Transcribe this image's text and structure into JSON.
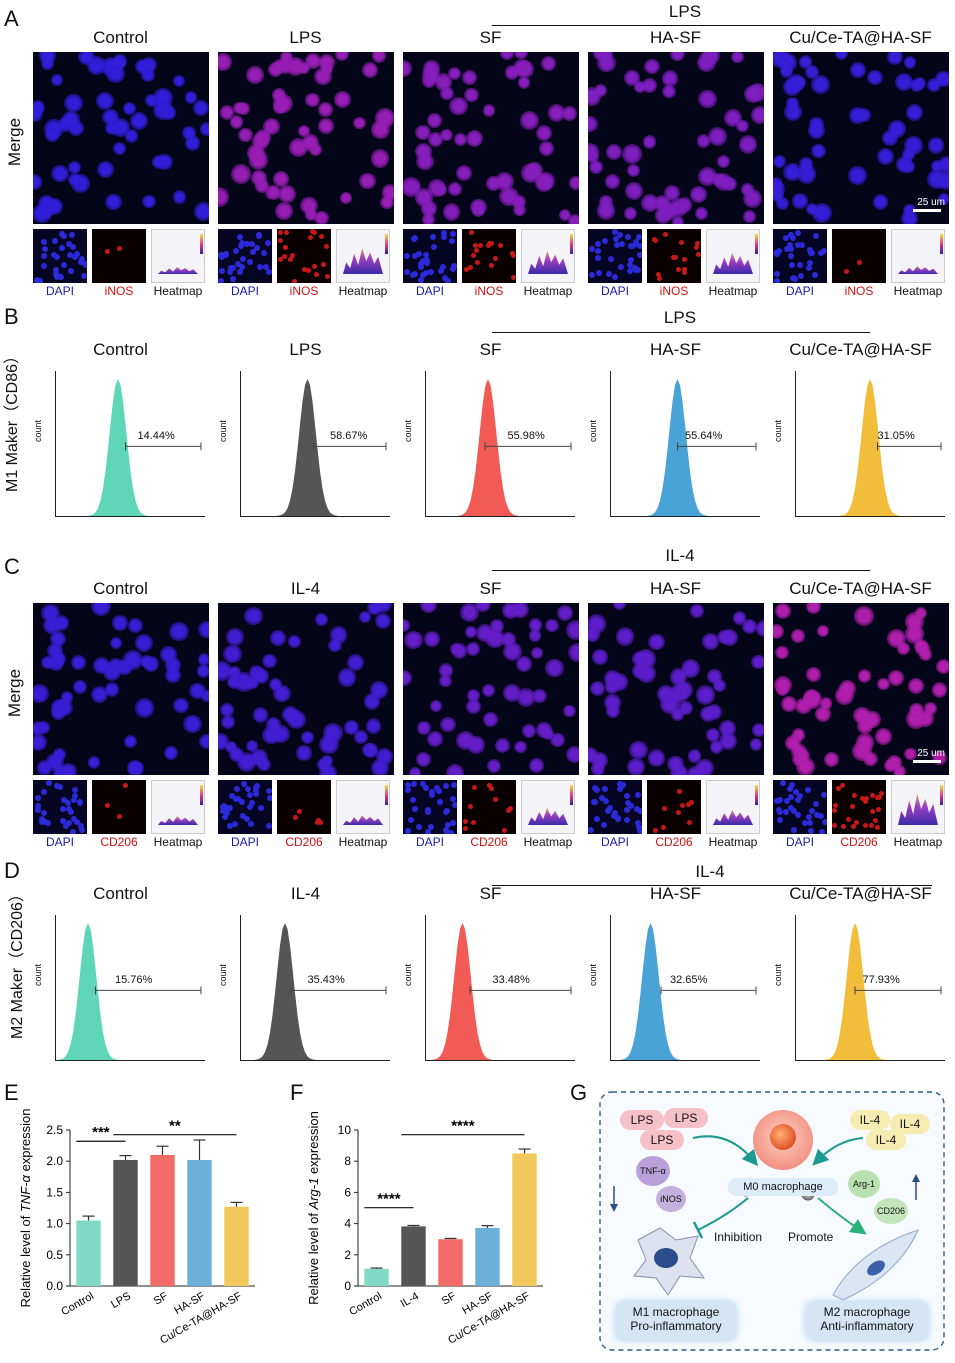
{
  "panel_letters": [
    "A",
    "B",
    "C",
    "D",
    "E",
    "F",
    "G"
  ],
  "panelA": {
    "group_header": "LPS",
    "row_label": "Merge",
    "titles": [
      "Control",
      "LPS",
      "SF",
      "HA-SF",
      "Cu/Ce-TA@HA-SF"
    ],
    "scale_bar": "25 um",
    "thumb_labels": [
      "DAPI",
      "iNOS",
      "Heatmap"
    ]
  },
  "panelB": {
    "group_header": "LPS",
    "row_label": "M1 Maker（CD86）",
    "titles": [
      "Control",
      "LPS",
      "SF",
      "HA-SF",
      "Cu/Ce-TA@HA-SF"
    ],
    "percents": [
      "14.44%",
      "58.67%",
      "55.98%",
      "55.64%",
      "31.05%"
    ],
    "count_label": "count",
    "colors": [
      "#5fd6b8",
      "#555555",
      "#f25a55",
      "#4aa3d6",
      "#f2bd3a"
    ]
  },
  "panelC": {
    "group_header": "IL-4",
    "row_label": "Merge",
    "titles": [
      "Control",
      "IL-4",
      "SF",
      "HA-SF",
      "Cu/Ce-TA@HA-SF"
    ],
    "scale_bar": "25 um",
    "thumb_labels": [
      "DAPI",
      "CD206",
      "Heatmap"
    ]
  },
  "panelD": {
    "group_header": "IL-4",
    "row_label": "M2 Maker（CD206）",
    "titles": [
      "Control",
      "IL-4",
      "SF",
      "HA-SF",
      "Cu/Ce-TA@HA-SF"
    ],
    "percents": [
      "15.76%",
      "35.43%",
      "33.48%",
      "32.65%",
      "77.93%"
    ],
    "count_label": "count",
    "colors": [
      "#5fd6b8",
      "#555555",
      "#f25a55",
      "#4aa3d6",
      "#f2bd3a"
    ]
  },
  "panelG": {
    "lps": [
      "LPS",
      "LPS",
      "LPS"
    ],
    "il4": [
      "IL-4",
      "IL-4",
      "IL-4"
    ],
    "m0": "M0 macrophage",
    "tnf": "TNF-α",
    "inos": "iNOS",
    "arg1": "Arg-1",
    "cd206": "CD206",
    "inhibition": "Inhibition",
    "promote": "Promote",
    "m1_line1": "M1 macrophage",
    "m1_line2": "Pro-inflammatory",
    "m2_line1": "M2 macrophage",
    "m2_line2": "Anti-inflammatory"
  },
  "chart_data": [
    {
      "type": "bar",
      "panel": "E",
      "categories": [
        "Control",
        "LPS",
        "SF",
        "HA-SF",
        "Cu/Ce-TA@HA-SF"
      ],
      "values": [
        1.05,
        2.02,
        2.1,
        2.02,
        1.27
      ],
      "errors": [
        0.07,
        0.07,
        0.14,
        0.32,
        0.07
      ],
      "ylabel_prefix": "Relative level of ",
      "ylabel_gene": "TNF-α",
      "ylabel_suffix": " expression",
      "ylim": [
        0,
        2.5
      ],
      "yticks": [
        "0.0",
        "0.5",
        "1.0",
        "1.5",
        "2.0",
        "2.5"
      ],
      "colors": [
        "#7fd9c4",
        "#555555",
        "#f26b66",
        "#6ab0d9",
        "#f2c75c"
      ],
      "significance": [
        {
          "from": 0,
          "to": 1,
          "label": "***"
        },
        {
          "from": 1,
          "to": 4,
          "label": "**"
        }
      ]
    },
    {
      "type": "bar",
      "panel": "F",
      "categories": [
        "Control",
        "IL-4",
        "SF",
        "HA-SF",
        "Cu/Ce-TA@HA-SF"
      ],
      "values": [
        1.1,
        3.82,
        3.0,
        3.72,
        8.5
      ],
      "errors": [
        0.05,
        0.06,
        0.05,
        0.15,
        0.28
      ],
      "ylabel_prefix": "Relative level of ",
      "ylabel_gene": "Arg-1",
      "ylabel_suffix": " expression",
      "ylim": [
        0,
        10
      ],
      "yticks": [
        "0",
        "2",
        "4",
        "6",
        "8",
        "10"
      ],
      "colors": [
        "#7fd9c4",
        "#555555",
        "#f26b66",
        "#6ab0d9",
        "#f2c75c"
      ],
      "significance": [
        {
          "from": 0,
          "to": 1,
          "label": "****"
        },
        {
          "from": 1,
          "to": 4,
          "label": "****"
        }
      ]
    }
  ]
}
